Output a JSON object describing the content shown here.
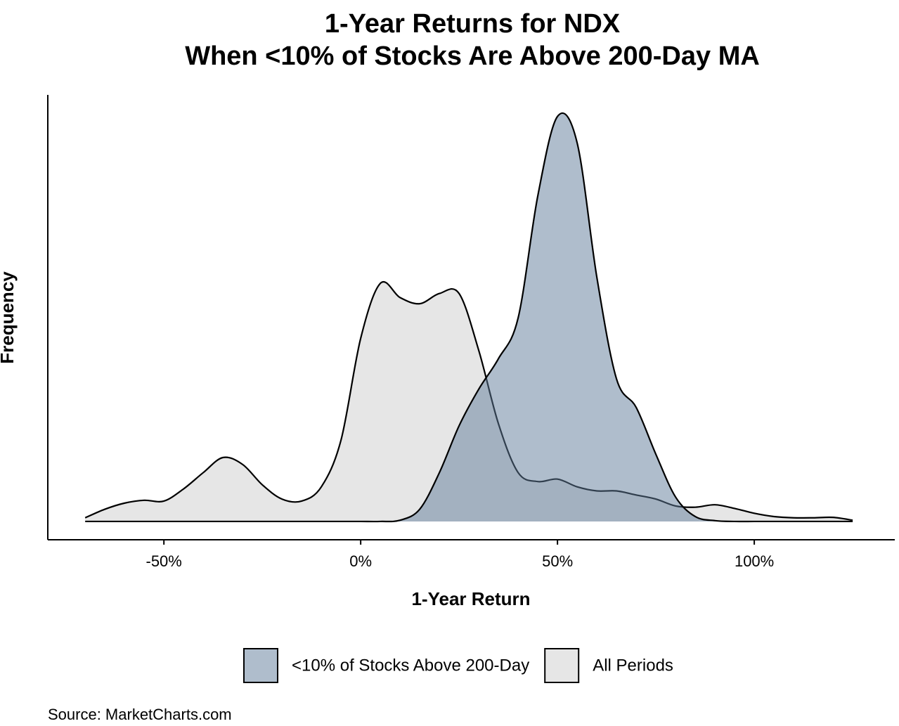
{
  "chart_data": {
    "type": "density",
    "title": "1-Year Returns for NDX",
    "subtitle": "When <10% of Stocks Are Above 200-Day MA",
    "x_label": "1-Year Return",
    "y_label": "Frequency",
    "source": "Source:  MarketCharts.com",
    "x": [
      -70,
      -65,
      -60,
      -55,
      -50,
      -45,
      -40,
      -35,
      -30,
      -25,
      -20,
      -15,
      -10,
      -5,
      0,
      5,
      10,
      15,
      20,
      25,
      30,
      35,
      40,
      45,
      50,
      55,
      60,
      65,
      70,
      75,
      80,
      85,
      90,
      95,
      100,
      105,
      110,
      115,
      120,
      125
    ],
    "series": [
      {
        "name": "All Periods",
        "color": "#e6e6e6",
        "values": [
          0.9,
          3,
          4.5,
          5.2,
          5,
          8,
          12,
          15.7,
          14,
          9,
          5.5,
          5,
          8.5,
          20,
          45,
          58.5,
          55,
          53.5,
          56,
          56,
          42,
          24,
          12,
          9.8,
          10.4,
          8.5,
          7.5,
          7.5,
          6.5,
          5.5,
          3.8,
          3.5,
          4.1,
          3.2,
          2,
          1.2,
          0.9,
          0.9,
          1,
          0.3
        ]
      },
      {
        "name": "<10% of Stocks Above 200-Day",
        "color": "#5f7c99",
        "values": [
          0,
          0,
          0,
          0,
          0,
          0,
          0,
          0,
          0,
          0,
          0,
          0,
          0,
          0,
          0,
          0,
          0.3,
          3,
          12,
          23.5,
          32.5,
          40,
          50,
          80,
          99.5,
          93,
          60,
          35,
          28,
          16.5,
          6,
          1.2,
          0.2,
          0,
          0,
          0,
          0,
          0,
          0,
          0
        ]
      }
    ],
    "legend_order": [
      1,
      0
    ],
    "xlim": [
      -79.5,
      135.7
    ],
    "xticks": [
      {
        "value": -50,
        "label": "-50%"
      },
      {
        "value": 0,
        "label": "0%"
      },
      {
        "value": 50,
        "label": "50%"
      },
      {
        "value": 100,
        "label": "100%"
      }
    ],
    "ylim": [
      -4.5,
      104.8
    ]
  }
}
